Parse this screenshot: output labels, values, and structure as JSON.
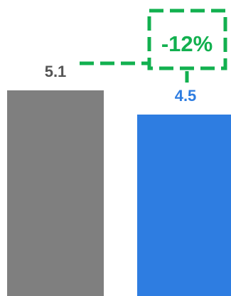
{
  "chart_data": {
    "type": "bar",
    "values": [
      5.1,
      4.5
    ],
    "data_labels": [
      "5.1",
      "4.5"
    ],
    "colors": [
      "#7f7f7f",
      "#2e7de1"
    ],
    "label_colors": [
      "#555555",
      "#2e7de1"
    ],
    "ylim": [
      0,
      5.1
    ],
    "grid": false,
    "annotation": {
      "text": "-12%",
      "color": "#12b04f"
    }
  }
}
